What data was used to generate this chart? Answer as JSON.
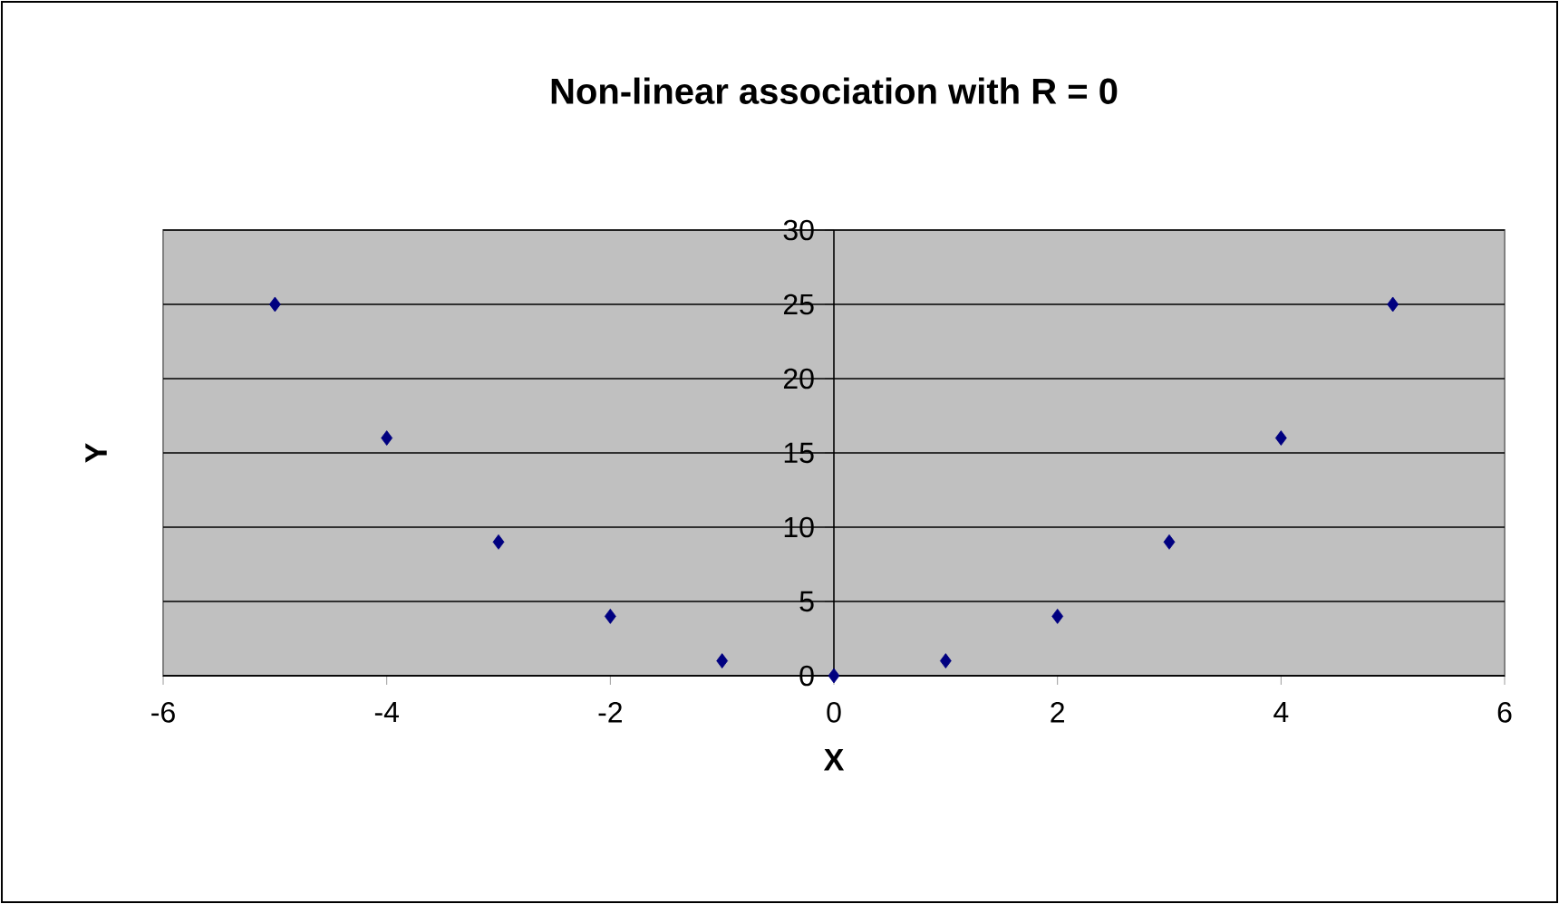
{
  "chart_data": {
    "type": "scatter",
    "title": "Non-linear association with R = 0",
    "xlabel": "X",
    "ylabel": "Y",
    "x": [
      -5,
      -4,
      -3,
      -2,
      -1,
      0,
      1,
      2,
      3,
      4,
      5
    ],
    "series": [
      {
        "color": "#000080",
        "values": [
          25,
          16,
          9,
          4,
          1,
          0,
          1,
          4,
          9,
          16,
          25
        ]
      }
    ],
    "xlim": [
      -6,
      6
    ],
    "xticks": [
      -6,
      -4,
      -2,
      0,
      2,
      4,
      6
    ],
    "ylim": [
      0,
      30
    ],
    "yticks": [
      0,
      5,
      10,
      15,
      20,
      25,
      30
    ],
    "grid": "y",
    "marker": "diamond"
  }
}
